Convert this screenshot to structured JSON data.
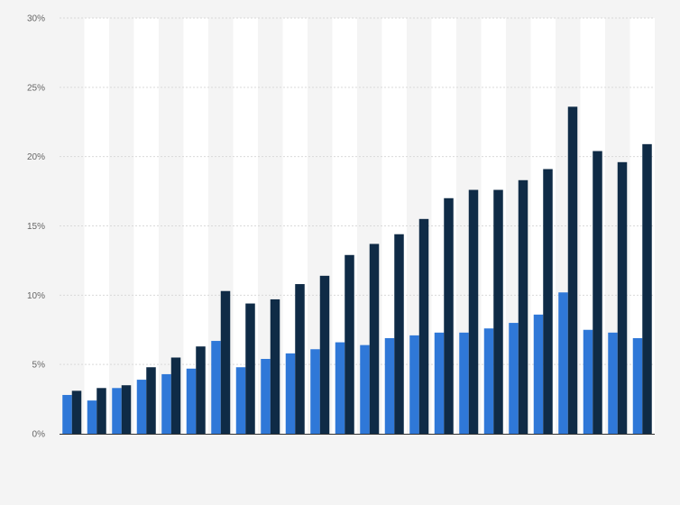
{
  "colors": {
    "background": "#f4f4f4",
    "band": "#ffffff",
    "gridline": "#d9d9d9",
    "axis": "#333333",
    "series_light": "#2f78d8",
    "series_dark": "#0f2b46"
  },
  "chart_data": {
    "type": "bar",
    "title": "",
    "xlabel": "",
    "ylabel": "",
    "ylim": [
      0,
      30
    ],
    "yticks": [
      "0%",
      "5%",
      "10%",
      "15%",
      "20%",
      "25%",
      "30%"
    ],
    "grid": true,
    "legend": "none",
    "categories": [
      "",
      "",
      "",
      "",
      "",
      "",
      "",
      "",
      "",
      "",
      "",
      "",
      "",
      "",
      "",
      "",
      "",
      "",
      "",
      "",
      "",
      "",
      "",
      ""
    ],
    "series": [
      {
        "color": "#2f78d8",
        "values": [
          2.8,
          2.4,
          3.3,
          3.9,
          4.3,
          4.7,
          6.7,
          4.8,
          5.4,
          5.8,
          6.1,
          6.6,
          6.4,
          6.9,
          7.1,
          7.3,
          7.3,
          7.6,
          8.0,
          8.6,
          10.2,
          7.5,
          7.3,
          6.9
        ]
      },
      {
        "color": "#0f2b46",
        "values": [
          3.1,
          3.3,
          3.5,
          4.8,
          5.5,
          6.3,
          10.3,
          9.4,
          9.7,
          10.8,
          11.4,
          12.9,
          13.7,
          14.4,
          15.5,
          17.0,
          17.6,
          17.6,
          18.3,
          19.1,
          23.6,
          20.4,
          19.6,
          20.9
        ]
      }
    ]
  }
}
